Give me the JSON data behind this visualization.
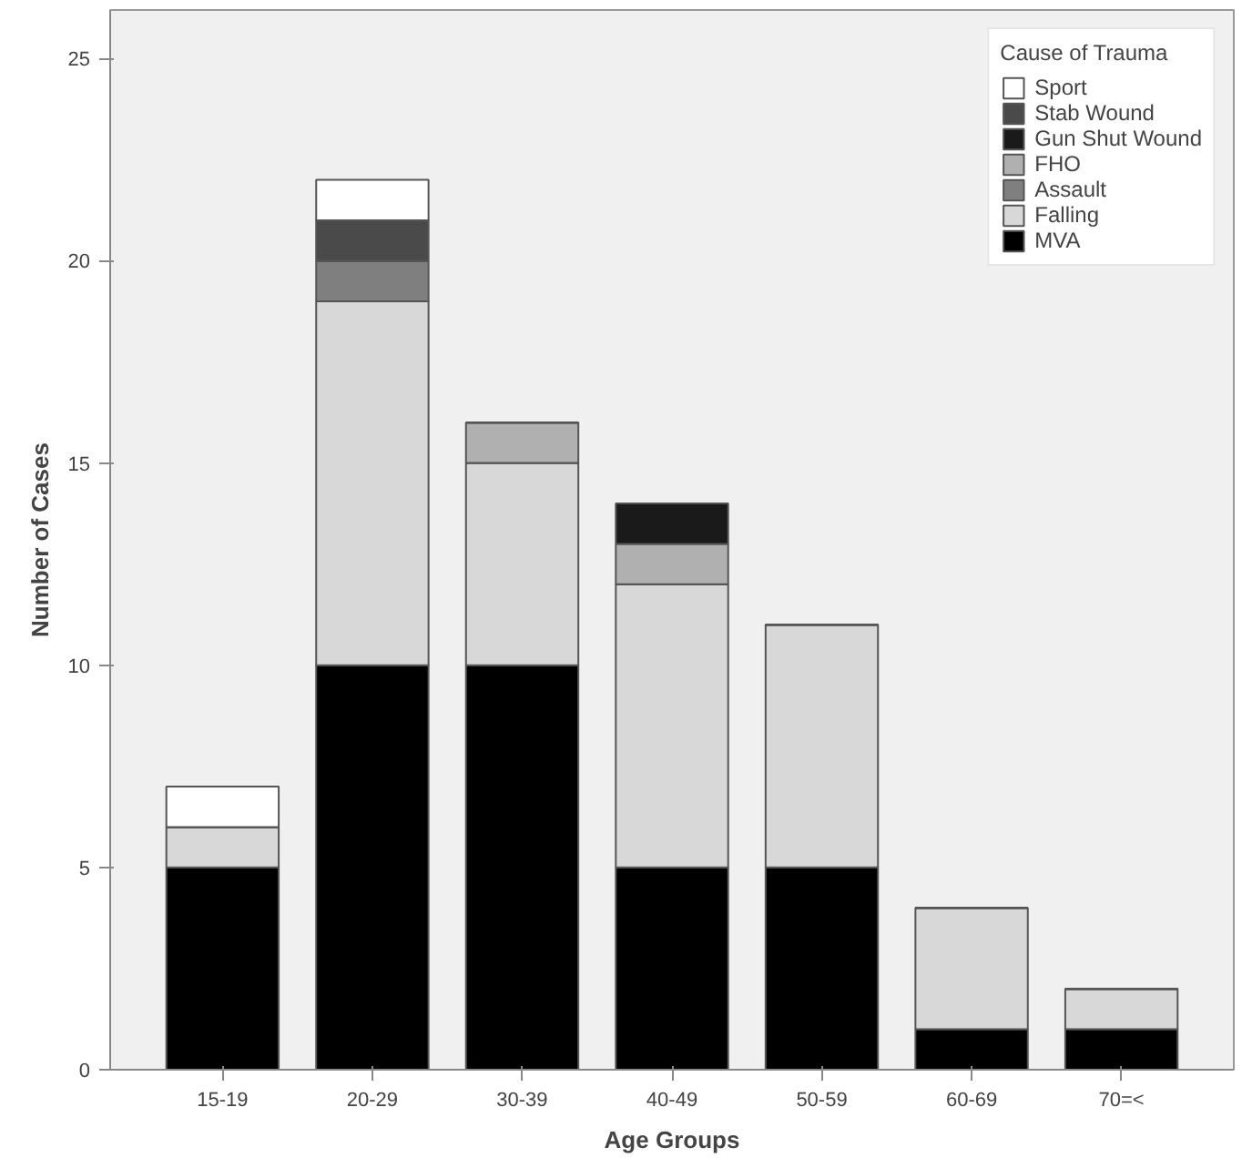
{
  "chart_data": {
    "type": "bar",
    "stacked": true,
    "xlabel": "Age Groups",
    "ylabel": "Number of Cases",
    "legend_title": "Cause of Trauma",
    "categories": [
      "15-19",
      "20-29",
      "30-39",
      "40-49",
      "50-59",
      "60-69",
      "70=<"
    ],
    "series": [
      {
        "name": "MVA",
        "color": "#000000",
        "values": [
          5,
          10,
          10,
          5,
          5,
          1,
          1
        ]
      },
      {
        "name": "Falling",
        "color": "#d8d8d8",
        "values": [
          1,
          9,
          5,
          7,
          6,
          3,
          1
        ]
      },
      {
        "name": "Assault",
        "color": "#7f7f7f",
        "values": [
          0,
          1,
          0,
          0,
          0,
          0,
          0
        ]
      },
      {
        "name": "FHO",
        "color": "#b0b0b0",
        "values": [
          0,
          0,
          1,
          1,
          0,
          0,
          0
        ]
      },
      {
        "name": "Gun Shut Wound",
        "color": "#1a1a1a",
        "values": [
          0,
          0,
          0,
          1,
          0,
          0,
          0
        ]
      },
      {
        "name": "Stab Wound",
        "color": "#4a4a4a",
        "values": [
          0,
          1,
          0,
          0,
          0,
          0,
          0
        ]
      },
      {
        "name": "Sport",
        "color": "#ffffff",
        "values": [
          1,
          1,
          0,
          0,
          0,
          0,
          0
        ]
      }
    ],
    "ylim": [
      0,
      26.2
    ],
    "yticks": [
      0,
      5,
      10,
      15,
      20,
      25
    ],
    "grid": false,
    "legend": "top right"
  }
}
